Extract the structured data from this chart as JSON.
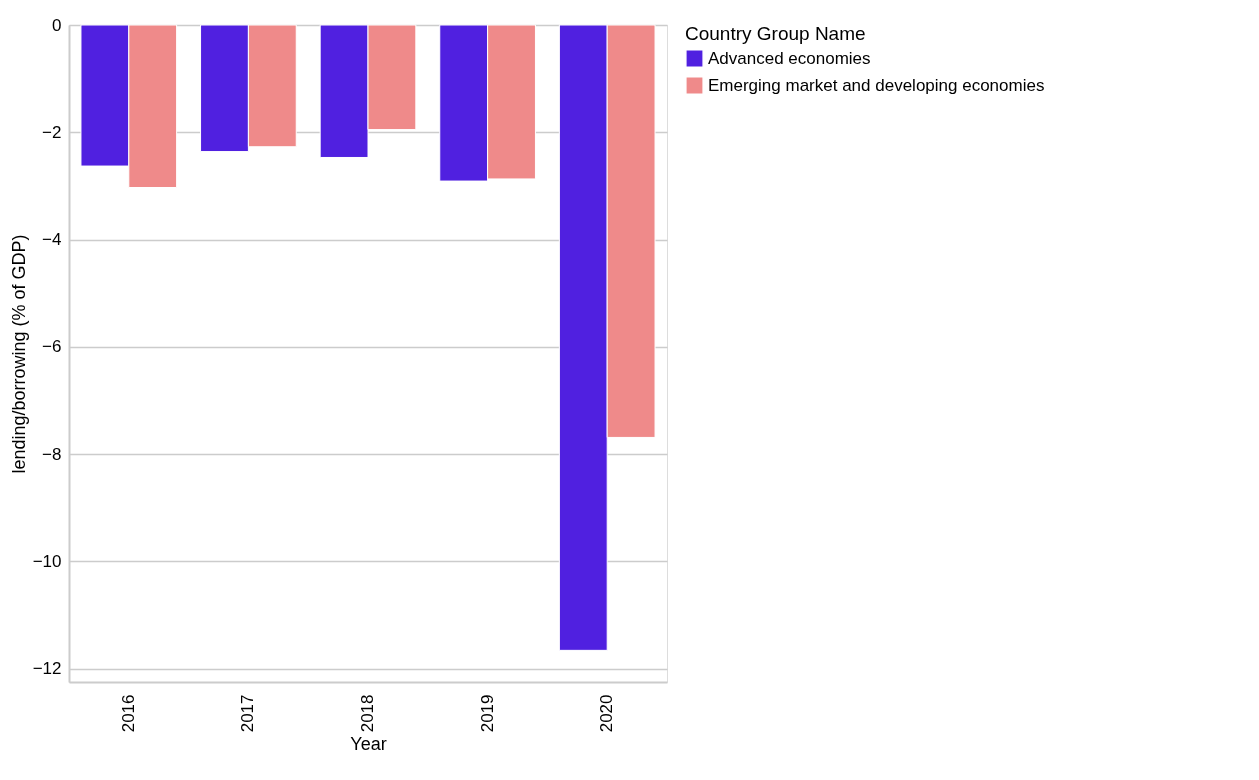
{
  "chart_data": {
    "type": "bar",
    "xlabel": "Year",
    "ylabel": "lending/borrowing (% of GDP)",
    "legend_title": "Country Group Name",
    "categories": [
      "2016",
      "2017",
      "2018",
      "2019",
      "2020"
    ],
    "series": [
      {
        "name": "Advanced economies",
        "color": "#5020e0",
        "values": [
          -2.63,
          -2.36,
          -2.47,
          -2.91,
          -11.66
        ]
      },
      {
        "name": "Emerging market and developing economies",
        "color": "#ef8a8a",
        "values": [
          -3.03,
          -2.27,
          -1.95,
          -2.87,
          -7.69
        ]
      }
    ],
    "ylim": [
      -12.25,
      0
    ],
    "yticks": [
      0,
      -2,
      -4,
      -6,
      -8,
      -10,
      -12
    ],
    "grid": "y",
    "legend": "right"
  }
}
